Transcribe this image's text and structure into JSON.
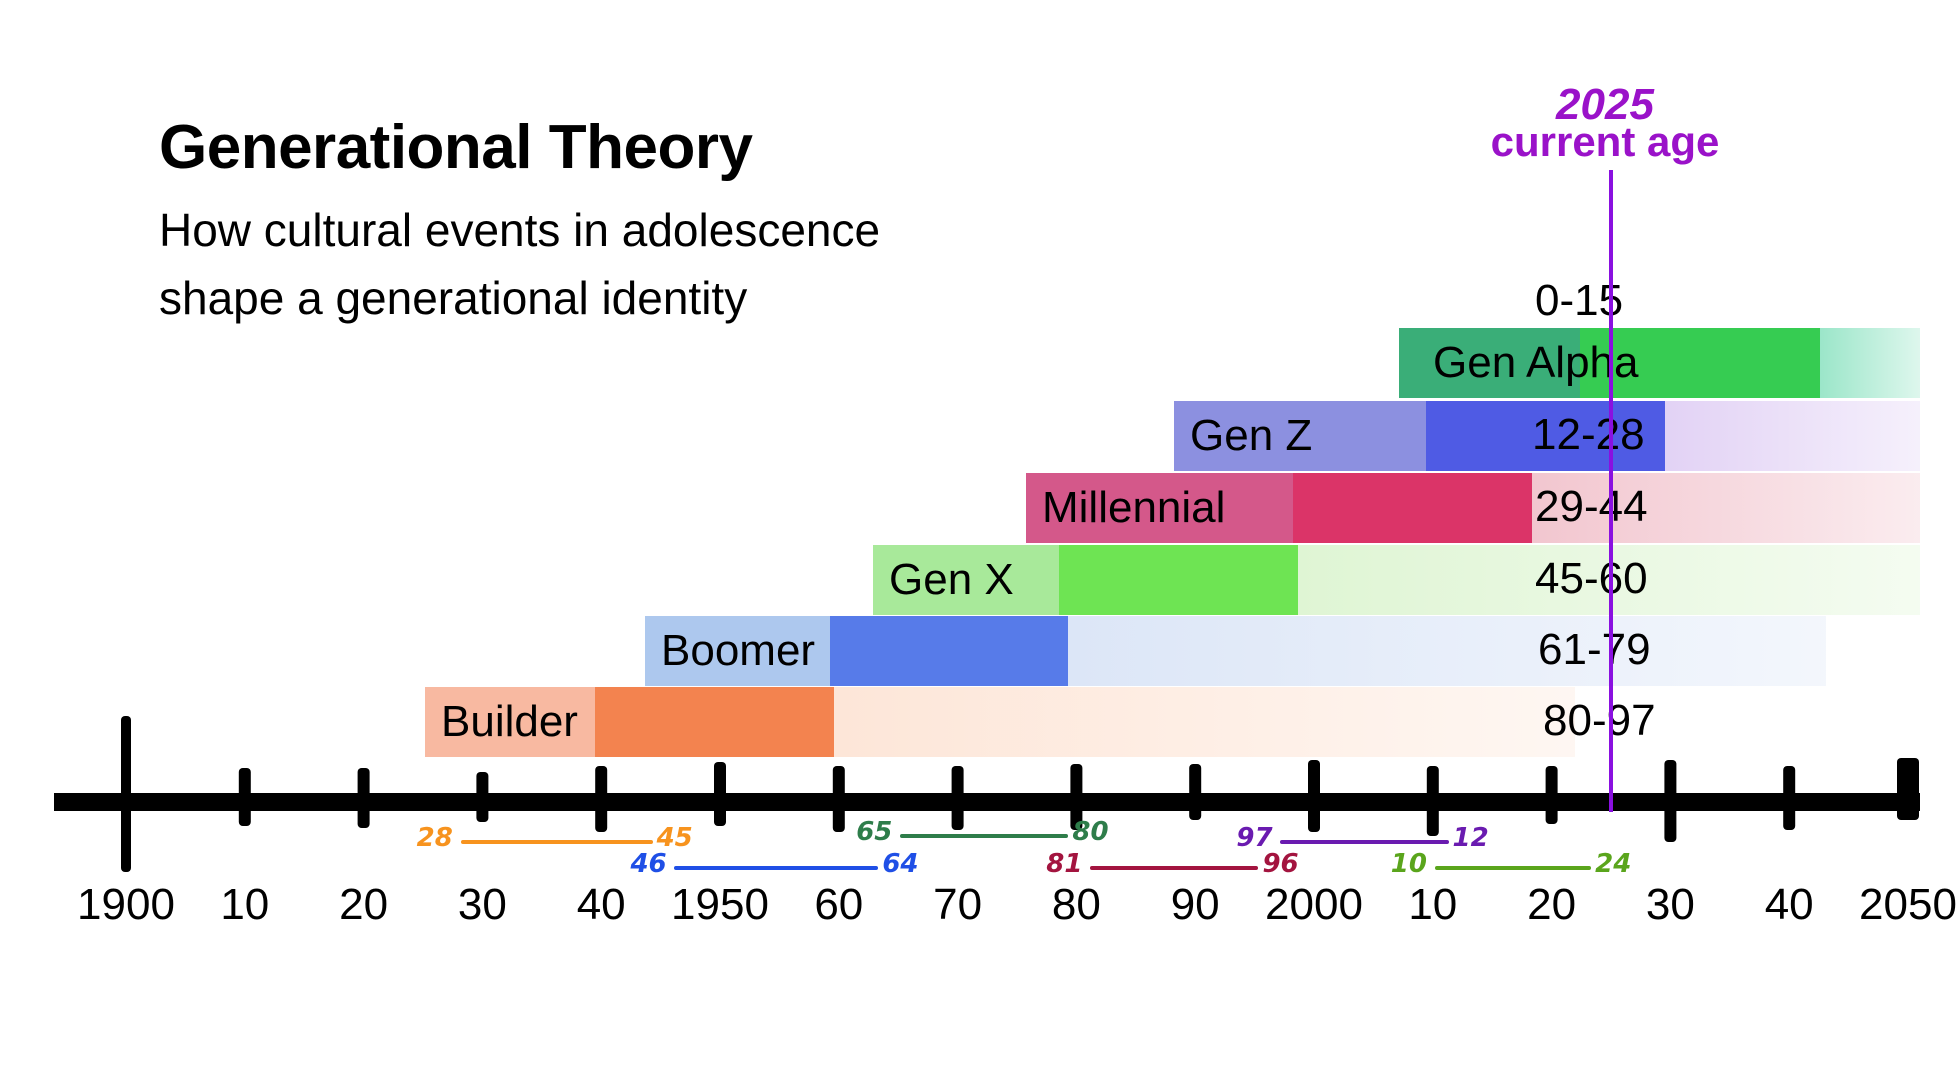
{
  "header": {
    "title": "Generational Theory",
    "subtitle_line1": "How cultural events in adolescence",
    "subtitle_line2": "shape a generational identity"
  },
  "marker": {
    "year": "2025",
    "label": "current age",
    "value": 2025,
    "color": "#8a10e0"
  },
  "generations": [
    {
      "name": "Builder",
      "age_range": "80-97",
      "birth_start": 1928,
      "birth_end": 1945,
      "colors": {
        "light": "#f8b9a1",
        "dark": "#f3834f",
        "fade": "#fde6d8"
      }
    },
    {
      "name": "Boomer",
      "age_range": "61-79",
      "birth_start": 1946,
      "birth_end": 1964,
      "colors": {
        "light": "#adc8ee",
        "dark": "#577be9",
        "fade": "#dce6f7"
      }
    },
    {
      "name": "Gen X",
      "age_range": "45-60",
      "birth_start": 1965,
      "birth_end": 1980,
      "colors": {
        "light": "#a8e99a",
        "dark": "#6ee453",
        "fade": "#dff5d4"
      }
    },
    {
      "name": "Millennial",
      "age_range": "29-44",
      "birth_start": 1981,
      "birth_end": 1996,
      "colors": {
        "light": "#d4588a",
        "dark": "#db3468",
        "fade": "#f2c6cf"
      }
    },
    {
      "name": "Gen Z",
      "age_range": "12-28",
      "birth_start": 1997,
      "birth_end": 2012,
      "colors": {
        "light": "#8c90e0",
        "dark": "#4f5be4",
        "fade": "#e2d2f5"
      }
    },
    {
      "name": "Gen Alpha",
      "age_range": "0-15",
      "birth_start": 2010,
      "birth_end": 2024,
      "colors": {
        "light": "#3aae78",
        "dark": "#36cc52",
        "fade": "#9be6c9"
      }
    }
  ],
  "axis": {
    "ticks": [
      {
        "year": 1900,
        "label": "1900"
      },
      {
        "year": 1910,
        "label": "10"
      },
      {
        "year": 1920,
        "label": "20"
      },
      {
        "year": 1930,
        "label": "30"
      },
      {
        "year": 1940,
        "label": "40"
      },
      {
        "year": 1950,
        "label": "1950"
      },
      {
        "year": 1960,
        "label": "60"
      },
      {
        "year": 1970,
        "label": "70"
      },
      {
        "year": 1980,
        "label": "80"
      },
      {
        "year": 1990,
        "label": "90"
      },
      {
        "year": 2000,
        "label": "2000"
      },
      {
        "year": 2010,
        "label": "10"
      },
      {
        "year": 2020,
        "label": "20"
      },
      {
        "year": 2030,
        "label": "30"
      },
      {
        "year": 2040,
        "label": "40"
      },
      {
        "year": 2050,
        "label": "2050"
      }
    ]
  },
  "birth_ranges": [
    {
      "start_label": "28",
      "end_label": "45",
      "start": 1928,
      "end": 1945,
      "color": "#f7931e",
      "row": 0
    },
    {
      "start_label": "46",
      "end_label": "64",
      "start": 1946,
      "end": 1964,
      "color": "#1f4fe6",
      "row": 1
    },
    {
      "start_label": "65",
      "end_label": "80",
      "start": 1965,
      "end": 1980,
      "color": "#2e7d4a",
      "row": 0
    },
    {
      "start_label": "81",
      "end_label": "96",
      "start": 1981,
      "end": 1996,
      "color": "#a3143f",
      "row": 1
    },
    {
      "start_label": "97",
      "end_label": "12",
      "start": 1997,
      "end": 2012,
      "color": "#6a1bb0",
      "row": 0
    },
    {
      "start_label": "10",
      "end_label": "24",
      "start": 2010,
      "end": 2024,
      "color": "#5aa51c",
      "row": 1
    }
  ]
}
